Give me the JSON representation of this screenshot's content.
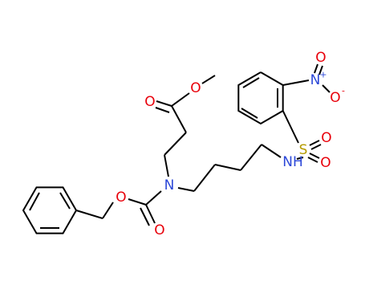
{
  "atoms": [
    {
      "label": "O",
      "kind": "O"
    },
    {
      "label": "O",
      "kind": "O"
    },
    {
      "label": "N",
      "kind": "N"
    },
    {
      "label": "O",
      "kind": "O"
    },
    {
      "label": "O",
      "kind": "O"
    },
    {
      "label": "NH",
      "kind": "N"
    },
    {
      "label": "S",
      "kind": "S"
    },
    {
      "label": "O",
      "kind": "O"
    },
    {
      "label": "O",
      "kind": "O"
    },
    {
      "label": "N",
      "kind": "N",
      "charge": "+"
    },
    {
      "label": "O",
      "kind": "O"
    },
    {
      "label": "O",
      "kind": "O",
      "charge": "-"
    }
  ]
}
